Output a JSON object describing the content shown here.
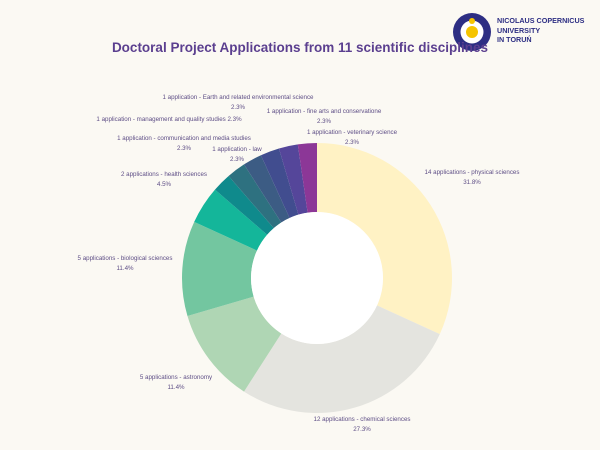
{
  "brand": {
    "line1": "NICOLAUS COPERNICUS",
    "line2": "UNIVERSITY",
    "line3": "IN TORUŃ",
    "primary_color": "#2d2e83",
    "accent_color": "#f5c400"
  },
  "chart_data": {
    "type": "pie",
    "title": "Doctoral Project Applications from 11 scientific disciplines",
    "donut": true,
    "series": [
      {
        "name": "physical sciences",
        "value": 14,
        "label": "14 applications - physical sciences",
        "pct": "31.8%",
        "color": "#fff2c4"
      },
      {
        "name": "chemical sciences",
        "value": 12,
        "label": "12 applications - chemical sciences",
        "pct": "27.3%",
        "color": "#e4e4df"
      },
      {
        "name": "astronomy",
        "value": 5,
        "label": "5 applications - astronomy",
        "pct": "11.4%",
        "color": "#afd6b4"
      },
      {
        "name": "biological sciences",
        "value": 5,
        "label": "5 applications - biological sciences",
        "pct": "11.4%",
        "color": "#73c6a0"
      },
      {
        "name": "health sciences",
        "value": 2,
        "label": "2 applications - health sciences",
        "pct": "4.5%",
        "color": "#14b69a"
      },
      {
        "name": "communication and media studies",
        "value": 1,
        "label": "1 application - communication and media studies",
        "pct": "2.3%",
        "color": "#0f8a8c"
      },
      {
        "name": "management and quality studies",
        "value": 1,
        "label": "1 application - management and quality studies 2.3%",
        "pct": "",
        "color": "#2e7180"
      },
      {
        "name": "Earth and related environmental science",
        "value": 1,
        "label": "1 application - Earth and related environmental science",
        "pct": "2.3%",
        "color": "#3c5c84"
      },
      {
        "name": "law",
        "value": 1,
        "label": "1 application - law",
        "pct": "2.3%",
        "color": "#414d8f"
      },
      {
        "name": "fine arts and conservatione",
        "value": 1,
        "label": "1 application - fine arts and conservatione",
        "pct": "2.3%",
        "color": "#55469a"
      },
      {
        "name": "veterinary science",
        "value": 1,
        "label": "1 application - veterinary science",
        "pct": "2.3%",
        "color": "#8c3797"
      }
    ]
  }
}
